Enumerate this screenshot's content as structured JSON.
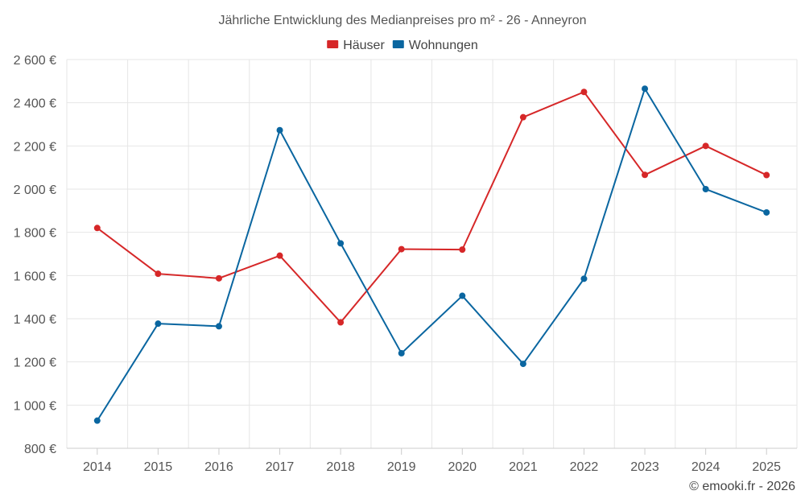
{
  "chart_data": {
    "type": "line",
    "title": "Jährliche Entwicklung des Medianpreises pro m² - 26 - Anneyron",
    "xlabel": "",
    "ylabel": "",
    "categories": [
      "2014",
      "2015",
      "2016",
      "2017",
      "2018",
      "2019",
      "2020",
      "2021",
      "2022",
      "2023",
      "2024",
      "2025"
    ],
    "ylim": [
      800,
      2600
    ],
    "yticks": [
      800,
      1000,
      1200,
      1400,
      1600,
      1800,
      2000,
      2200,
      2400,
      2600
    ],
    "ytick_labels": [
      "800 €",
      "1 000 €",
      "1 200 €",
      "1 400 €",
      "1 600 €",
      "1 800 €",
      "2 000 €",
      "2 200 €",
      "2 400 €",
      "2 600 €"
    ],
    "grid": true,
    "legend_position": "top-center",
    "series": [
      {
        "name": "Häuser",
        "color": "#d62728",
        "values": [
          1820,
          1608,
          1587,
          1692,
          1383,
          1722,
          1720,
          2333,
          2450,
          2066,
          2200,
          2065
        ]
      },
      {
        "name": "Wohnungen",
        "color": "#0a66a0",
        "values": [
          928,
          1377,
          1365,
          2273,
          1749,
          1240,
          1506,
          1191,
          1585,
          2465,
          2000,
          1892
        ]
      }
    ]
  },
  "credit": "© emooki.fr - 2026"
}
